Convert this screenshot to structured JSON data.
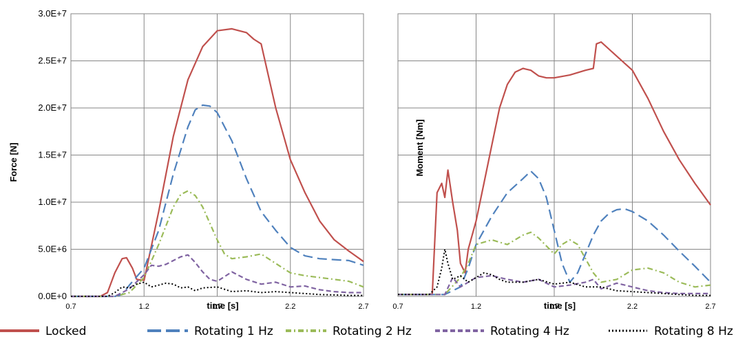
{
  "chart_data": [
    {
      "type": "line",
      "ylabel": "Force [N]",
      "xlabel": "time [s]",
      "xlim": [
        0.7,
        2.7
      ],
      "ylim": [
        0,
        30000000
      ],
      "xticks": [
        "0.7",
        "1.2",
        "1.7",
        "2.2",
        "2.7"
      ],
      "yticks": [
        "0.0E+0",
        "5.0E+6",
        "1.0E+7",
        "1.5E+7",
        "2.0E+7",
        "2.5E+7",
        "3.0E+7"
      ],
      "ytick_values": [
        0,
        5000000,
        10000000,
        15000000,
        20000000,
        25000000,
        30000000
      ],
      "grid": true,
      "series": [
        {
          "name": "Locked",
          "x": [
            0.7,
            0.9,
            0.95,
            1.0,
            1.05,
            1.08,
            1.12,
            1.15,
            1.2,
            1.3,
            1.4,
            1.5,
            1.6,
            1.7,
            1.8,
            1.9,
            1.95,
            2.0,
            2.1,
            2.2,
            2.3,
            2.4,
            2.5,
            2.6,
            2.7
          ],
          "y": [
            0,
            0,
            400000,
            2500000,
            4000000,
            4100000,
            3000000,
            1800000,
            1700000,
            9000000,
            17000000,
            23000000,
            26500000,
            28200000,
            28400000,
            28000000,
            27300000,
            26800000,
            20000000,
            14500000,
            11000000,
            8000000,
            6000000,
            4800000,
            3700000
          ]
        },
        {
          "name": "Rotating 1 Hz",
          "x": [
            0.7,
            1.0,
            1.05,
            1.1,
            1.2,
            1.3,
            1.4,
            1.5,
            1.55,
            1.6,
            1.65,
            1.7,
            1.8,
            1.9,
            2.0,
            2.1,
            2.2,
            2.3,
            2.4,
            2.5,
            2.6,
            2.7
          ],
          "y": [
            0,
            0,
            200000,
            1200000,
            3000000,
            7000000,
            13000000,
            18000000,
            19800000,
            20300000,
            20200000,
            19500000,
            16500000,
            12500000,
            9000000,
            7000000,
            5200000,
            4300000,
            4000000,
            3900000,
            3800000,
            3300000
          ]
        },
        {
          "name": "Rotating 2 Hz",
          "x": [
            0.7,
            1.0,
            1.1,
            1.2,
            1.3,
            1.4,
            1.45,
            1.5,
            1.55,
            1.6,
            1.7,
            1.75,
            1.8,
            1.9,
            2.0,
            2.1,
            2.2,
            2.3,
            2.4,
            2.5,
            2.6,
            2.7
          ],
          "y": [
            0,
            0,
            400000,
            2000000,
            5500000,
            9500000,
            10800000,
            11200000,
            10700000,
            9500000,
            6000000,
            4500000,
            4000000,
            4200000,
            4500000,
            3500000,
            2500000,
            2200000,
            2000000,
            1800000,
            1600000,
            1000000
          ]
        },
        {
          "name": "Rotating 4 Hz",
          "x": [
            0.7,
            1.0,
            1.1,
            1.2,
            1.25,
            1.3,
            1.35,
            1.4,
            1.45,
            1.5,
            1.55,
            1.6,
            1.65,
            1.7,
            1.8,
            1.9,
            2.0,
            2.1,
            2.2,
            2.3,
            2.4,
            2.5,
            2.6,
            2.7
          ],
          "y": [
            0,
            0,
            800000,
            2300000,
            3300000,
            3200000,
            3400000,
            3800000,
            4200000,
            4400000,
            3600000,
            2600000,
            1800000,
            1600000,
            2600000,
            1800000,
            1300000,
            1500000,
            1000000,
            1100000,
            700000,
            500000,
            400000,
            400000
          ]
        },
        {
          "name": "Rotating 8 Hz",
          "x": [
            0.7,
            0.95,
            1.0,
            1.05,
            1.1,
            1.15,
            1.2,
            1.25,
            1.3,
            1.35,
            1.4,
            1.45,
            1.5,
            1.55,
            1.6,
            1.7,
            1.8,
            1.9,
            2.0,
            2.1,
            2.2,
            2.3,
            2.4,
            2.5,
            2.6,
            2.7
          ],
          "y": [
            0,
            0,
            400000,
            1000000,
            900000,
            1300000,
            1500000,
            1000000,
            1200000,
            1400000,
            1300000,
            900000,
            1000000,
            600000,
            900000,
            1000000,
            500000,
            600000,
            400000,
            500000,
            400000,
            300000,
            200000,
            150000,
            100000,
            100000
          ]
        }
      ]
    },
    {
      "type": "line",
      "ylabel": "Moment  [Nm]",
      "xlabel": "time [s]",
      "xlim": [
        0.7,
        2.7
      ],
      "ylim": [
        0,
        30000000
      ],
      "xticks": [
        "0.7",
        "1.2",
        "1.7",
        "2.2",
        "2.7"
      ],
      "grid": true,
      "series": [
        {
          "name": "Locked",
          "x": [
            0.7,
            0.9,
            0.92,
            0.95,
            0.98,
            1.0,
            1.02,
            1.05,
            1.08,
            1.1,
            1.13,
            1.15,
            1.2,
            1.25,
            1.3,
            1.35,
            1.4,
            1.45,
            1.5,
            1.55,
            1.6,
            1.65,
            1.7,
            1.8,
            1.9,
            1.95,
            1.97,
            2.0,
            2.1,
            2.2,
            2.3,
            2.4,
            2.5,
            2.6,
            2.7
          ],
          "y": [
            200000,
            200000,
            300000,
            11000000,
            12000000,
            10500000,
            13400000,
            10000000,
            7000000,
            3500000,
            2500000,
            5000000,
            8000000,
            12000000,
            16000000,
            20000000,
            22500000,
            23800000,
            24200000,
            24000000,
            23400000,
            23200000,
            23200000,
            23500000,
            24000000,
            24200000,
            26800000,
            27000000,
            25500000,
            24000000,
            21000000,
            17500000,
            14500000,
            12000000,
            9700000
          ]
        },
        {
          "name": "Rotating 1 Hz",
          "x": [
            0.7,
            1.0,
            1.1,
            1.15,
            1.2,
            1.3,
            1.4,
            1.5,
            1.55,
            1.6,
            1.65,
            1.7,
            1.75,
            1.8,
            1.85,
            1.9,
            1.95,
            2.0,
            2.05,
            2.1,
            2.15,
            2.2,
            2.3,
            2.4,
            2.5,
            2.6,
            2.7
          ],
          "y": [
            200000,
            200000,
            1000000,
            3000000,
            5500000,
            8500000,
            11000000,
            12500000,
            13300000,
            12500000,
            10500000,
            7000000,
            3500000,
            1500000,
            2500000,
            4500000,
            6500000,
            8000000,
            8800000,
            9200000,
            9300000,
            9000000,
            8000000,
            6500000,
            4800000,
            3200000,
            1500000
          ]
        },
        {
          "name": "Rotating 2 Hz",
          "x": [
            0.7,
            1.0,
            1.1,
            1.15,
            1.2,
            1.3,
            1.4,
            1.5,
            1.55,
            1.6,
            1.7,
            1.75,
            1.8,
            1.85,
            1.9,
            1.95,
            2.0,
            2.1,
            2.2,
            2.3,
            2.4,
            2.5,
            2.6,
            2.7
          ],
          "y": [
            200000,
            200000,
            2000000,
            3500000,
            5500000,
            6000000,
            5500000,
            6500000,
            6800000,
            6200000,
            4500000,
            5500000,
            6000000,
            5500000,
            4000000,
            2500000,
            1500000,
            1800000,
            2800000,
            3000000,
            2500000,
            1500000,
            1000000,
            1200000
          ]
        },
        {
          "name": "Rotating 4 Hz",
          "x": [
            0.7,
            1.0,
            1.05,
            1.1,
            1.15,
            1.2,
            1.3,
            1.4,
            1.5,
            1.6,
            1.7,
            1.8,
            1.9,
            1.95,
            2.0,
            2.1,
            2.2,
            2.3,
            2.4,
            2.5,
            2.6,
            2.7
          ],
          "y": [
            200000,
            200000,
            2000000,
            1000000,
            1500000,
            2000000,
            2200000,
            1800000,
            1500000,
            1800000,
            1000000,
            1200000,
            1500000,
            1800000,
            800000,
            1400000,
            1000000,
            600000,
            400000,
            300000,
            300000,
            300000
          ]
        },
        {
          "name": "Rotating 8 Hz",
          "x": [
            0.7,
            0.9,
            0.95,
            0.98,
            1.0,
            1.02,
            1.05,
            1.1,
            1.15,
            1.2,
            1.25,
            1.3,
            1.35,
            1.4,
            1.5,
            1.6,
            1.7,
            1.8,
            1.9,
            2.0,
            2.1,
            2.2,
            2.3,
            2.4,
            2.5,
            2.6,
            2.7
          ],
          "y": [
            200000,
            200000,
            1000000,
            3000000,
            5000000,
            3500000,
            1800000,
            2200000,
            1500000,
            2000000,
            2500000,
            2300000,
            1800000,
            1500000,
            1500000,
            1800000,
            1300000,
            1500000,
            1000000,
            1000000,
            600000,
            500000,
            400000,
            300000,
            200000,
            100000,
            100000
          ]
        }
      ]
    }
  ],
  "legend": [
    {
      "name": "Locked",
      "color": "#c0504d",
      "dash": "solid"
    },
    {
      "name": "Rotating 1 Hz",
      "color": "#4f81bd",
      "dash": "long-dash"
    },
    {
      "name": "Rotating 2 Hz",
      "color": "#9bbb59",
      "dash": "dash-dot"
    },
    {
      "name": "Rotating 4 Hz",
      "color": "#8064a2",
      "dash": "dash"
    },
    {
      "name": "Rotating 8 Hz",
      "color": "#000000",
      "dash": "dot"
    }
  ]
}
